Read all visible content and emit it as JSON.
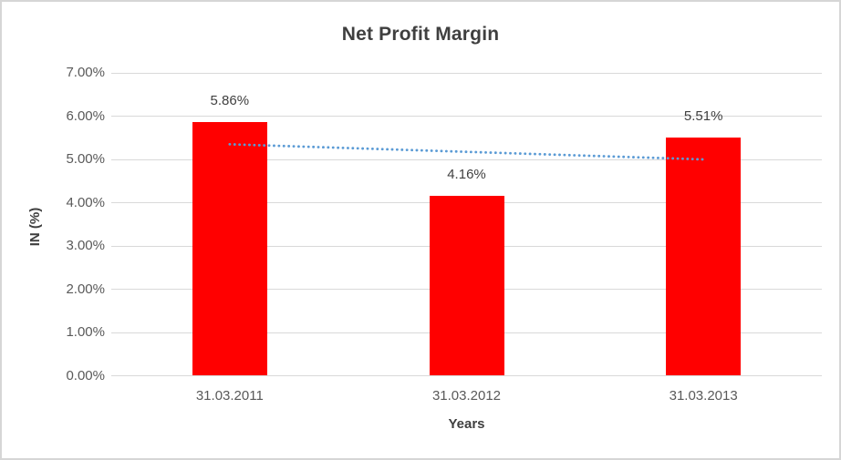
{
  "chart_data": {
    "type": "bar",
    "title": "Net Profit Margin",
    "xlabel": "Years",
    "ylabel": "IN (%)",
    "categories": [
      "31.03.2011",
      "31.03.2012",
      "31.03.2013"
    ],
    "values": [
      5.86,
      4.16,
      5.51
    ],
    "data_labels": [
      "5.86%",
      "4.16%",
      "5.51%"
    ],
    "ylim": [
      0,
      7
    ],
    "ytick_step": 1,
    "ytick_labels": [
      "0.00%",
      "1.00%",
      "2.00%",
      "3.00%",
      "4.00%",
      "5.00%",
      "6.00%",
      "7.00%"
    ],
    "grid": true,
    "legend": "none",
    "trendline": {
      "type": "linear",
      "start_value": 5.35,
      "end_value": 5.0,
      "style": "dotted"
    },
    "colors": {
      "bar": "#ff0000",
      "trendline": "#5b9bd5",
      "gridline": "#d9d9d9",
      "tick_text": "#595959",
      "title_text": "#3f3f3f",
      "data_label_text": "#404040",
      "frame_border": "#d6d6d6",
      "background": "#ffffff"
    }
  }
}
